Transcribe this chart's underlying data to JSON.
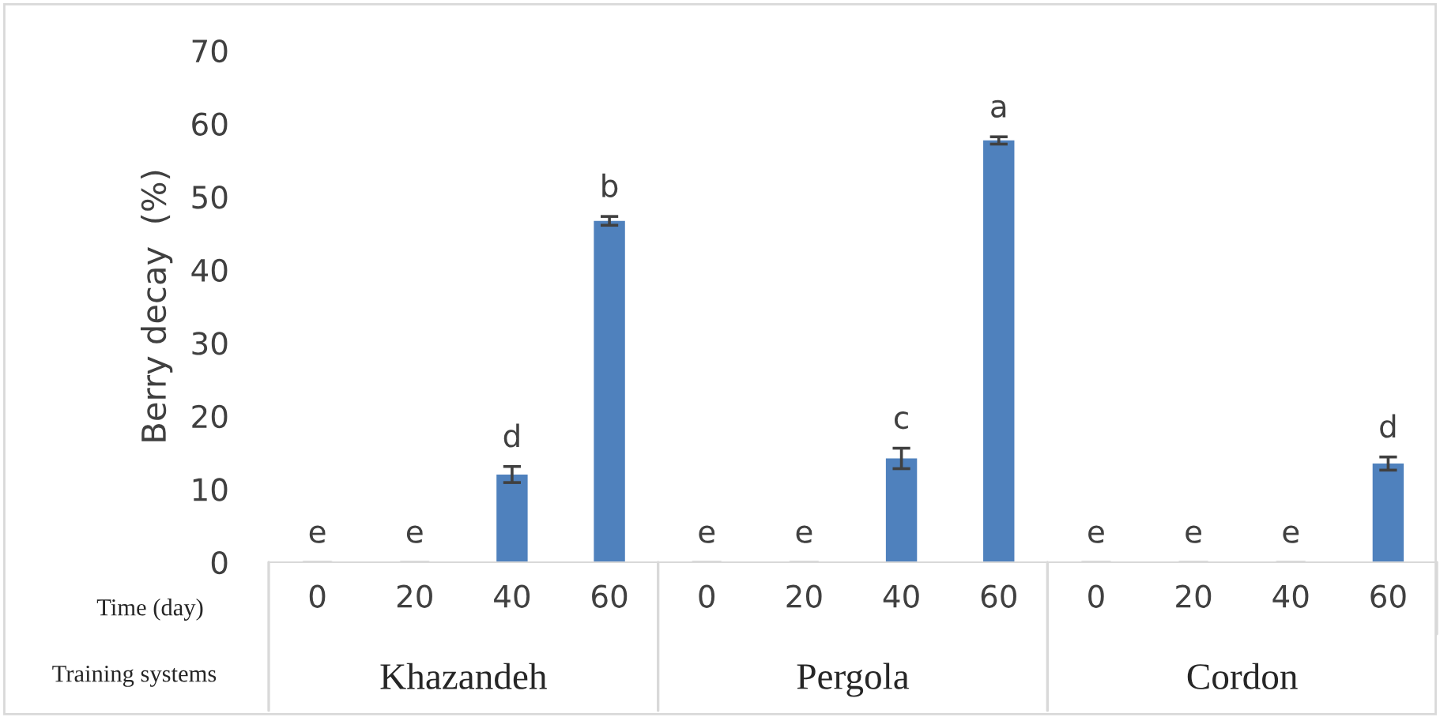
{
  "chart_data": {
    "type": "bar",
    "ylabel": "Berry decay  (%)",
    "categories": [
      "0",
      "20",
      "40",
      "60",
      "0",
      "20",
      "40",
      "60",
      "0",
      "20",
      "40",
      "60"
    ],
    "values": [
      0,
      0,
      12,
      46.7,
      0,
      0,
      14.2,
      57.7,
      0,
      0,
      0,
      13.5
    ],
    "errors": [
      null,
      null,
      1.1,
      0.6,
      null,
      null,
      1.4,
      0.5,
      null,
      null,
      null,
      0.9
    ],
    "value_labels": [
      "e",
      "e",
      "d",
      "b",
      "e",
      "e",
      "c",
      "a",
      "e",
      "e",
      "e",
      "d"
    ],
    "color": "#4f81bd",
    "ylim": [
      0,
      70
    ],
    "yticks": [
      0,
      10,
      20,
      30,
      40,
      50,
      60,
      70
    ],
    "grid": false,
    "annotations": [
      "Time (day)",
      "Training systems",
      "Khazandeh",
      "Pergola",
      "Cordon"
    ]
  }
}
